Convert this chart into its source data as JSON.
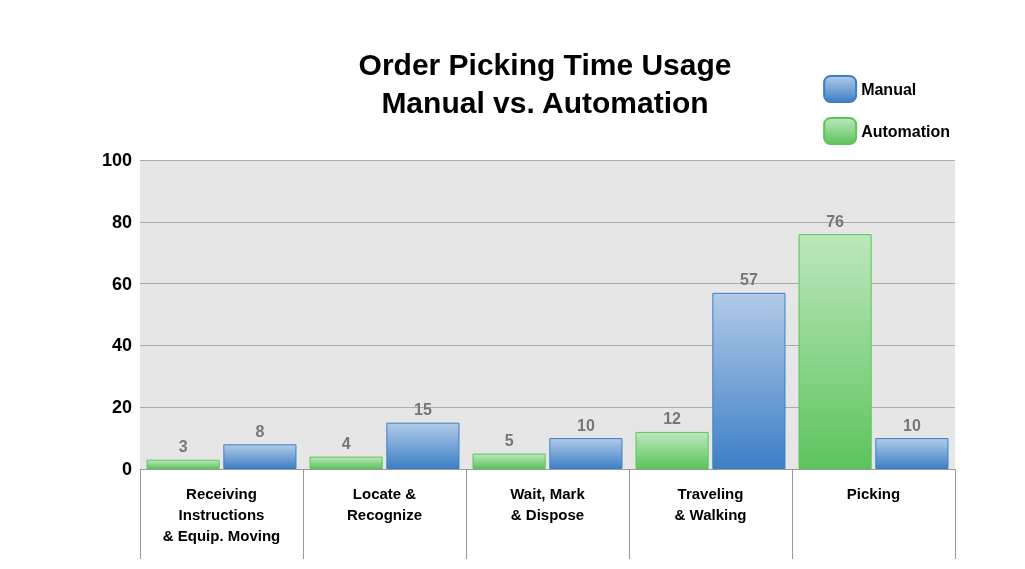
{
  "chart_data": {
    "type": "bar",
    "title": "Order Picking Time Usage\nManual vs. Automation",
    "categories": [
      "Receiving\nInstructions\n& Equip. Moving",
      "Locate &\nRecognize",
      "Wait, Mark\n& Dispose",
      "Traveling\n& Walking",
      "Picking"
    ],
    "series": [
      {
        "name": "Automation",
        "color": "#5cc45c",
        "values": [
          3,
          4,
          5,
          12,
          76
        ]
      },
      {
        "name": "Manual",
        "color": "#3d7fc6",
        "values": [
          8,
          15,
          10,
          57,
          10
        ]
      }
    ],
    "ylim": [
      0,
      100
    ],
    "yticks": [
      0,
      20,
      40,
      60,
      80,
      100
    ],
    "grid": "y",
    "legend": "top right",
    "data_labels": true
  }
}
